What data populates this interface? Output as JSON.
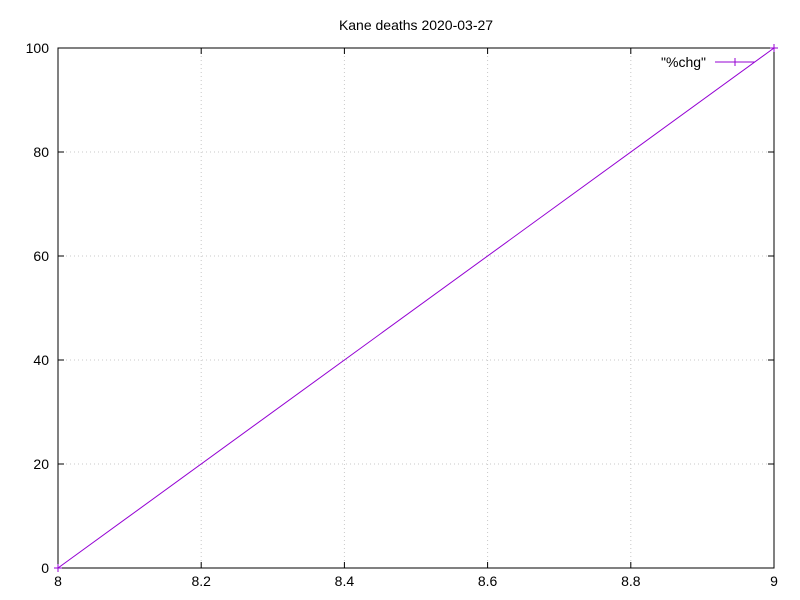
{
  "chart_data": {
    "type": "line",
    "title": "Kane deaths 2020-03-27",
    "xlabel": "",
    "ylabel": "",
    "xlim": [
      8,
      9
    ],
    "ylim": [
      0,
      100
    ],
    "x_ticks": [
      8,
      8.2,
      8.4,
      8.6,
      8.8,
      9
    ],
    "y_ticks": [
      0,
      20,
      40,
      60,
      80,
      100
    ],
    "x_tick_labels": [
      "8",
      "8.2",
      "8.4",
      "8.6",
      "8.8",
      "9"
    ],
    "y_tick_labels": [
      "0",
      "20",
      "40",
      "60",
      "80",
      "100"
    ],
    "grid": true,
    "legend_position": "top-right",
    "series": [
      {
        "name": "\"%chg\"",
        "color": "#9400d3",
        "marker": "plus",
        "x": [
          8,
          9
        ],
        "y": [
          0,
          100
        ]
      }
    ]
  }
}
